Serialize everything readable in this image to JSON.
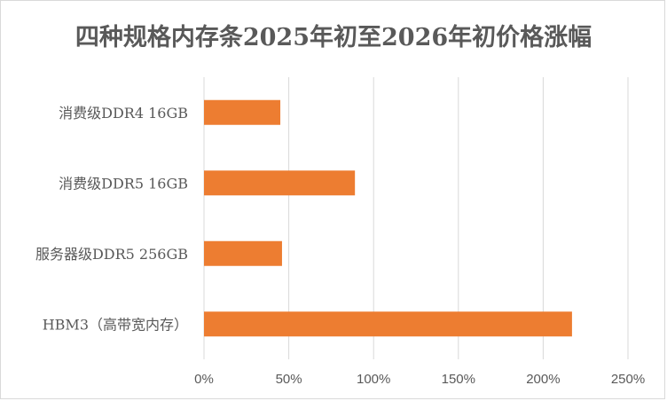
{
  "chart_data": {
    "type": "bar",
    "orientation": "horizontal",
    "title": "四种规格内存条2025年初至2026年初价格涨幅",
    "categories": [
      "消费级DDR4 16GB",
      "消费级DDR5 16GB",
      "服务器级DDR5 256GB",
      "HBM3（高带宽内存）"
    ],
    "values": [
      45,
      89,
      46,
      217
    ],
    "value_unit": "%",
    "xlim": [
      0,
      250
    ],
    "xticks": [
      0,
      50,
      100,
      150,
      200,
      250
    ],
    "xtick_labels": [
      "0%",
      "50%",
      "100%",
      "150%",
      "200%",
      "250%"
    ],
    "grid": true,
    "bar_color": "#ed7d31",
    "xlabel": "",
    "ylabel": ""
  }
}
